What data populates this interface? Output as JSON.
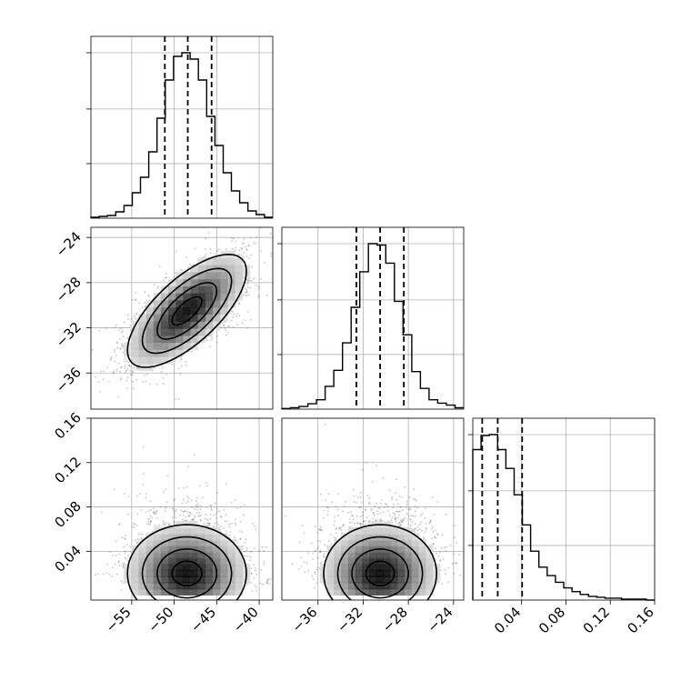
{
  "chart_data": {
    "type": "corner",
    "parameters": [
      {
        "name": "",
        "range": [
          -59.8,
          -38.4
        ],
        "ticks": [
          -55,
          -50,
          -45,
          -40
        ],
        "tick_labels": [
          "−55",
          "−50",
          "−45",
          "−40"
        ],
        "quantiles": [
          -51.1,
          -48.4,
          -45.6
        ],
        "hist_values": [
          1,
          2,
          3,
          7,
          14,
          28,
          45,
          73,
          110,
          152,
          178,
          182,
          175,
          152,
          112,
          80,
          50,
          30,
          17,
          8,
          4,
          1
        ]
      },
      {
        "name": "",
        "range": [
          -39.2,
          -23.1
        ],
        "ticks": [
          -36,
          -32,
          -28,
          -24
        ],
        "tick_labels": [
          "−36",
          "−32",
          "−28",
          "−24"
        ],
        "quantiles": [
          -32.6,
          -30.5,
          -28.4
        ],
        "hist_values": [
          1,
          2,
          4,
          8,
          14,
          34,
          58,
          99,
          152,
          205,
          247,
          245,
          218,
          161,
          111,
          56,
          31,
          14,
          9,
          6,
          2
        ]
      },
      {
        "name": "",
        "range": [
          -0.004,
          0.16
        ],
        "ticks": [
          0.04,
          0.08,
          0.12,
          0.16
        ],
        "tick_labels": [
          "0.04",
          "0.08",
          "0.12",
          "0.16"
        ],
        "quantiles": [
          0.0045,
          0.0185,
          0.0405
        ],
        "hist_values": [
          160,
          175,
          176,
          160,
          140,
          112,
          80,
          52,
          35,
          26,
          19,
          13,
          9,
          6,
          4,
          3,
          2,
          2,
          1,
          1,
          1,
          0
        ]
      }
    ],
    "scatter_panels": [
      {
        "x_param": 0,
        "y_param": 1,
        "center": [
          -48.5,
          -30.5
        ],
        "spread": [
          3.5,
          2.5
        ],
        "correlation": 0.7
      },
      {
        "x_param": 0,
        "y_param": 2,
        "center": [
          -48.5,
          0.02
        ],
        "spread": [
          3.5,
          0.022
        ],
        "correlation": 0.0
      },
      {
        "x_param": 1,
        "y_param": 2,
        "center": [
          -30.5,
          0.02
        ],
        "spread": [
          2.5,
          0.022
        ],
        "correlation": 0.0
      }
    ],
    "grid": true
  }
}
